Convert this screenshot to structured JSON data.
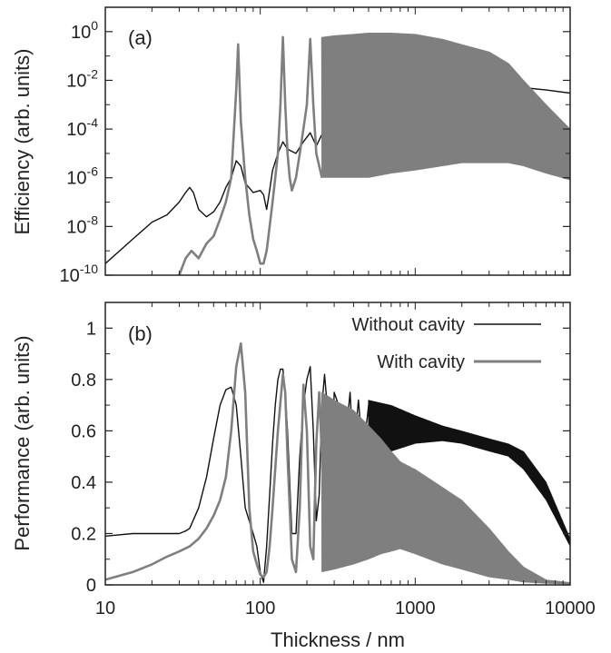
{
  "colors": {
    "without_cavity": "#111111",
    "with_cavity": "#7f7f7f",
    "frame": "#222222"
  },
  "chart_data": [
    {
      "type": "line",
      "panel_label": "(a)",
      "ylabel": "Efficiency (arb. units)",
      "xlabel": "",
      "x_scale": "log",
      "y_scale": "log",
      "xlim": [
        10,
        10000
      ],
      "ylim": [
        1e-10,
        10
      ],
      "yticks": [
        {
          "base": "10",
          "exp": "0",
          "value": 1
        },
        {
          "base": "10",
          "exp": "-2",
          "value": 0.01
        },
        {
          "base": "10",
          "exp": "-4",
          "value": 0.0001
        },
        {
          "base": "10",
          "exp": "-6",
          "value": 1e-06
        },
        {
          "base": "10",
          "exp": "-8",
          "value": 1e-08
        },
        {
          "base": "10",
          "exp": "-10",
          "value": 1e-10
        }
      ],
      "series": [
        {
          "key": "without",
          "x": [
            10,
            15,
            20,
            25,
            30,
            33,
            35,
            37,
            40,
            45,
            50,
            55,
            60,
            65,
            70,
            75,
            80,
            90,
            100,
            105,
            110,
            115,
            120,
            130,
            140,
            150,
            170,
            190,
            210,
            230,
            260,
            290,
            320,
            360,
            400,
            450,
            500,
            600,
            700,
            800,
            1000,
            1500,
            2000,
            3000,
            5000,
            7000,
            10000
          ],
          "y": [
            3e-10,
            3e-09,
            1.5e-08,
            3e-08,
            1e-07,
            2.5e-07,
            4e-07,
            2.5e-07,
            5e-08,
            2.5e-08,
            4e-08,
            1e-07,
            4e-07,
            1e-06,
            5e-06,
            3e-06,
            6e-07,
            2.5e-07,
            3e-07,
            2e-07,
            5e-08,
            3e-07,
            2e-06,
            1e-05,
            3e-05,
            1.5e-05,
            1e-05,
            3e-05,
            7e-05,
            2e-05,
            0.0001,
            0.0001,
            0.00015,
            0.0002,
            0.0004,
            0.0005,
            0.0008,
            0.0015,
            0.002,
            0.0025,
            0.003,
            0.0035,
            0.004,
            0.005,
            0.005,
            0.004,
            0.003
          ]
        },
        {
          "key": "with",
          "x": [
            30,
            33,
            36,
            40,
            45,
            50,
            55,
            60,
            65,
            70,
            72,
            75,
            80,
            85,
            90,
            95,
            100,
            105,
            110,
            115,
            120,
            125,
            130,
            135,
            140,
            145,
            150,
            155,
            160,
            170,
            180,
            190,
            200,
            210,
            220,
            230,
            250
          ],
          "y": [
            1e-10,
            5e-10,
            1e-09,
            5e-10,
            2e-09,
            4e-09,
            2e-08,
            1e-07,
            1e-06,
            0.004,
            0.3,
            0.0002,
            1e-06,
            3e-08,
            3e-09,
            1e-09,
            3e-10,
            3e-10,
            1e-09,
            1e-08,
            1e-07,
            1e-06,
            1e-05,
            0.001,
            0.6,
            0.001,
            1e-05,
            1e-06,
            3e-07,
            1e-06,
            1e-05,
            0.0001,
            0.001,
            0.5,
            0.001,
            1e-05,
            1e-06
          ],
          "envelope": {
            "x": [
              250,
              300,
              400,
              500,
              700,
              1000,
              1500,
              2000,
              3000,
              4000,
              5000,
              7000,
              10000
            ],
            "upper": [
              0.6,
              0.7,
              0.8,
              0.9,
              0.9,
              0.8,
              0.5,
              0.3,
              0.15,
              0.05,
              0.01,
              0.001,
              0.0001
            ],
            "lower": [
              1e-06,
              1e-06,
              1e-06,
              1e-06,
              1.5e-06,
              2e-06,
              3e-06,
              4e-06,
              4e-06,
              4e-06,
              3e-06,
              1.5e-06,
              8e-07
            ]
          }
        }
      ]
    },
    {
      "type": "line",
      "panel_label": "(b)",
      "ylabel": "Performance (arb. units)",
      "xlabel": "Thickness / nm",
      "x_scale": "log",
      "xlim": [
        10,
        10000
      ],
      "ylim": [
        0,
        1.1
      ],
      "xticks": [
        "10",
        "100",
        "1000",
        "10000"
      ],
      "yticks": [
        "0",
        "0.2",
        "0.4",
        "0.6",
        "0.8",
        "1"
      ],
      "legend_position": "top-right",
      "series": [
        {
          "key": "without",
          "name": "Without cavity",
          "x": [
            10,
            15,
            20,
            25,
            30,
            33,
            35,
            40,
            45,
            50,
            55,
            60,
            65,
            70,
            75,
            80,
            90,
            95,
            100,
            105,
            110,
            115,
            120,
            125,
            130,
            135,
            140,
            145,
            150,
            160,
            170,
            180,
            190,
            200,
            210,
            220,
            230,
            240,
            250,
            260,
            270,
            280,
            290,
            300,
            320,
            340,
            360,
            380,
            400,
            430,
            460,
            500
          ],
          "y": [
            0.19,
            0.2,
            0.2,
            0.2,
            0.2,
            0.21,
            0.22,
            0.3,
            0.42,
            0.57,
            0.7,
            0.76,
            0.77,
            0.7,
            0.5,
            0.3,
            0.2,
            0.15,
            0.05,
            0.01,
            0.15,
            0.35,
            0.55,
            0.7,
            0.8,
            0.84,
            0.84,
            0.75,
            0.6,
            0.2,
            0.2,
            0.5,
            0.7,
            0.8,
            0.85,
            0.6,
            0.25,
            0.35,
            0.7,
            0.82,
            0.7,
            0.35,
            0.45,
            0.75,
            0.7,
            0.4,
            0.6,
            0.75,
            0.5,
            0.72,
            0.5,
            0.7
          ],
          "envelope": {
            "x": [
              500,
              700,
              1000,
              1500,
              2000,
              3000,
              4000,
              5000,
              7000,
              10000
            ],
            "upper": [
              0.72,
              0.7,
              0.66,
              0.62,
              0.6,
              0.57,
              0.55,
              0.52,
              0.4,
              0.18
            ],
            "lower": [
              0.48,
              0.52,
              0.55,
              0.56,
              0.55,
              0.52,
              0.5,
              0.45,
              0.33,
              0.15
            ]
          }
        },
        {
          "key": "with",
          "name": "With cavity",
          "x": [
            10,
            15,
            20,
            25,
            30,
            35,
            40,
            45,
            50,
            55,
            60,
            65,
            70,
            75,
            80,
            85,
            90,
            95,
            100,
            105,
            110,
            115,
            120,
            130,
            140,
            145,
            150,
            160,
            170,
            180,
            190,
            200,
            210,
            220,
            230,
            240,
            250
          ],
          "y": [
            0.02,
            0.05,
            0.08,
            0.11,
            0.13,
            0.15,
            0.18,
            0.22,
            0.27,
            0.33,
            0.42,
            0.6,
            0.85,
            0.94,
            0.75,
            0.3,
            0.13,
            0.08,
            0.04,
            0.03,
            0.05,
            0.15,
            0.3,
            0.6,
            0.82,
            0.75,
            0.5,
            0.1,
            0.05,
            0.3,
            0.78,
            0.6,
            0.15,
            0.1,
            0.55,
            0.75,
            0.5
          ],
          "envelope": {
            "x": [
              250,
              300,
              400,
              500,
              600,
              700,
              800,
              1000,
              1500,
              2000,
              3000,
              4000,
              5000,
              7000,
              10000
            ],
            "upper": [
              0.75,
              0.72,
              0.68,
              0.62,
              0.57,
              0.52,
              0.48,
              0.45,
              0.38,
              0.33,
              0.22,
              0.13,
              0.07,
              0.02,
              0.01
            ],
            "lower": [
              0.05,
              0.06,
              0.08,
              0.1,
              0.12,
              0.13,
              0.14,
              0.12,
              0.08,
              0.06,
              0.03,
              0.02,
              0.01,
              0.005,
              0.003
            ]
          }
        }
      ]
    }
  ]
}
